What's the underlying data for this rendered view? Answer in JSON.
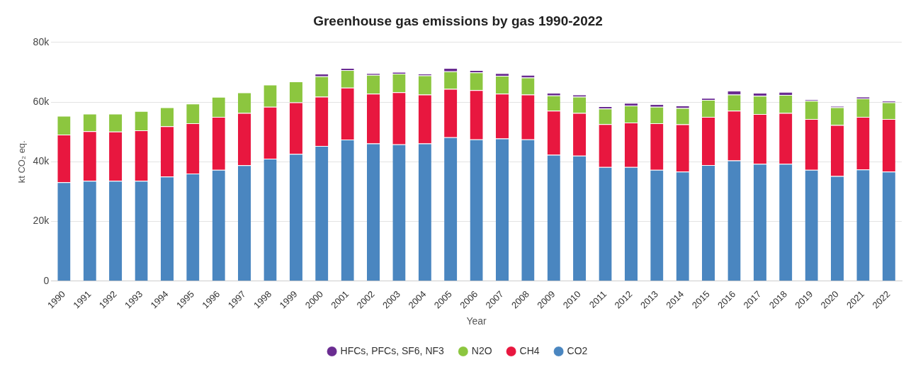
{
  "chart_data": {
    "type": "bar",
    "title": "Greenhouse gas emissions by gas 1990-2022",
    "xlabel": "Year",
    "ylabel": "kt CO₂ eq.",
    "stacked": true,
    "grid": "y",
    "legend": "bottom",
    "categories": [
      "1990",
      "1991",
      "1992",
      "1993",
      "1994",
      "1995",
      "1996",
      "1997",
      "1998",
      "1999",
      "2000",
      "2001",
      "2002",
      "2003",
      "2004",
      "2005",
      "2006",
      "2007",
      "2008",
      "2009",
      "2010",
      "2011",
      "2012",
      "2013",
      "2014",
      "2015",
      "2016",
      "2017",
      "2018",
      "2019",
      "2020",
      "2021",
      "2022"
    ],
    "ylim": [
      0,
      80000
    ],
    "yticks": [
      0,
      {
        "value": 20000,
        "label": "20k"
      },
      {
        "value": 40000,
        "label": "40k"
      },
      {
        "value": 60000,
        "label": "60k"
      },
      {
        "value": 80000,
        "label": "80k"
      }
    ],
    "series": [
      {
        "name": "CO2",
        "color": "#4a86c0",
        "values": [
          33100,
          33600,
          33600,
          33600,
          35000,
          36000,
          37300,
          38800,
          41000,
          42600,
          45300,
          47400,
          46100,
          45800,
          46100,
          48200,
          47500,
          47800,
          47500,
          42300,
          42000,
          38200,
          38200,
          37300,
          36700,
          38900,
          40400,
          39300,
          39300,
          37300,
          35200,
          37400,
          36700
        ]
      },
      {
        "name": "CH4",
        "color": "#e8173f",
        "values": [
          16000,
          16600,
          16500,
          16900,
          16900,
          16900,
          17700,
          17500,
          17400,
          17300,
          16500,
          17400,
          16700,
          17500,
          16400,
          16200,
          16500,
          15000,
          15000,
          14800,
          14300,
          14400,
          14900,
          15600,
          15800,
          16100,
          16700,
          16700,
          17000,
          17000,
          17100,
          17600,
          17600
        ]
      },
      {
        "name": "N2O",
        "color": "#8cc63f",
        "values": [
          6300,
          5900,
          6000,
          6500,
          6300,
          6600,
          6700,
          6900,
          7400,
          7000,
          6800,
          5900,
          6300,
          6200,
          6400,
          5900,
          5900,
          6000,
          5700,
          5100,
          5500,
          5200,
          5700,
          5500,
          5500,
          5700,
          5400,
          6100,
          6100,
          6100,
          5900,
          6200,
          5600
        ]
      },
      {
        "name": "HFCs, PFCs, SF6, NF3",
        "color": "#6a2c91",
        "values": [
          0,
          0,
          0,
          0,
          0,
          0,
          0,
          0,
          0,
          0,
          900,
          700,
          600,
          600,
          600,
          1100,
          800,
          900,
          900,
          900,
          700,
          800,
          900,
          900,
          800,
          700,
          1300,
          1000,
          1000,
          500,
          500,
          600,
          500
        ]
      }
    ]
  }
}
